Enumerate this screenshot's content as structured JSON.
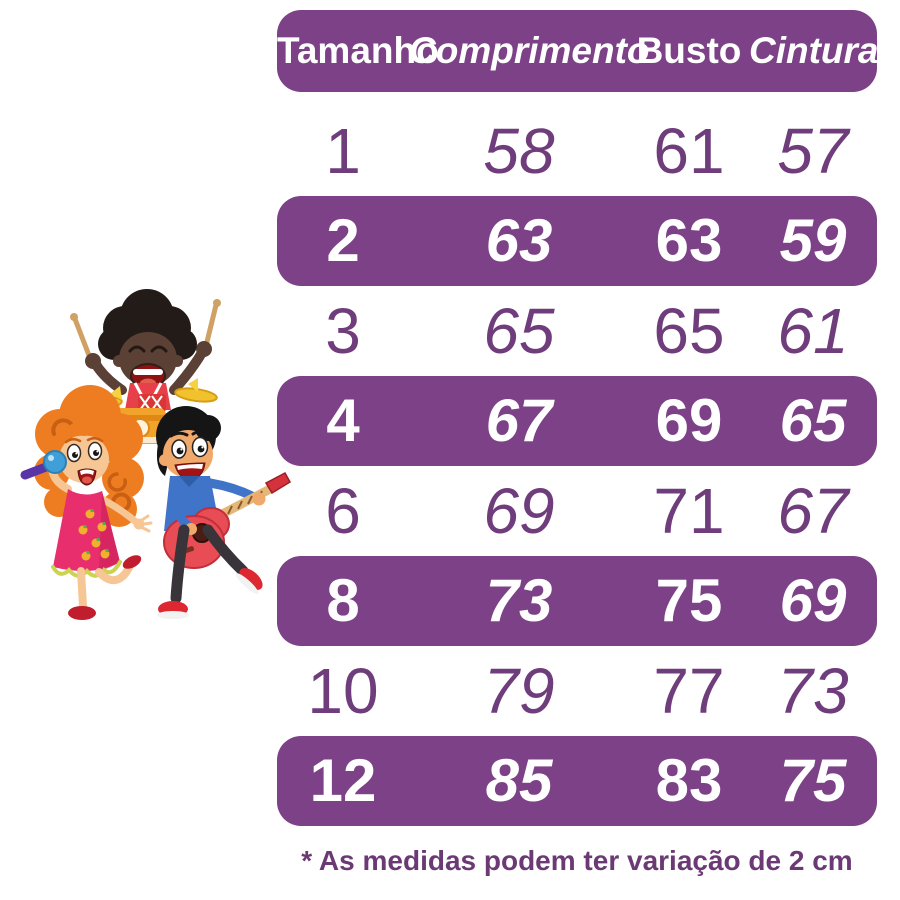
{
  "colors": {
    "purple_bar": "#7c4187",
    "number_text": "#6f3d7b",
    "header_text": "#ffffff",
    "background": "#ffffff"
  },
  "table": {
    "headers": [
      "Tamanho",
      "Comprimento",
      "Busto",
      "Cintura"
    ],
    "rows": [
      {
        "tamanho": "1",
        "comprimento": "58",
        "busto": "61",
        "cintura": "57",
        "highlight": false
      },
      {
        "tamanho": "2",
        "comprimento": "63",
        "busto": "63",
        "cintura": "59",
        "highlight": true
      },
      {
        "tamanho": "3",
        "comprimento": "65",
        "busto": "65",
        "cintura": "61",
        "highlight": false
      },
      {
        "tamanho": "4",
        "comprimento": "67",
        "busto": "69",
        "cintura": "65",
        "highlight": true
      },
      {
        "tamanho": "6",
        "comprimento": "69",
        "busto": "71",
        "cintura": "67",
        "highlight": false
      },
      {
        "tamanho": "8",
        "comprimento": "73",
        "busto": "75",
        "cintura": "69",
        "highlight": true
      },
      {
        "tamanho": "10",
        "comprimento": "79",
        "busto": "77",
        "cintura": "73",
        "highlight": false
      },
      {
        "tamanho": "12",
        "comprimento": "85",
        "busto": "83",
        "cintura": "75",
        "highlight": true
      }
    ]
  },
  "footnote": "* As medidas podem ter variação de 2 cm",
  "illustration": {
    "name": "kids-music-band",
    "elements": [
      "drummer-kid-icon",
      "singer-girl-icon",
      "guitarist-boy-icon"
    ]
  }
}
